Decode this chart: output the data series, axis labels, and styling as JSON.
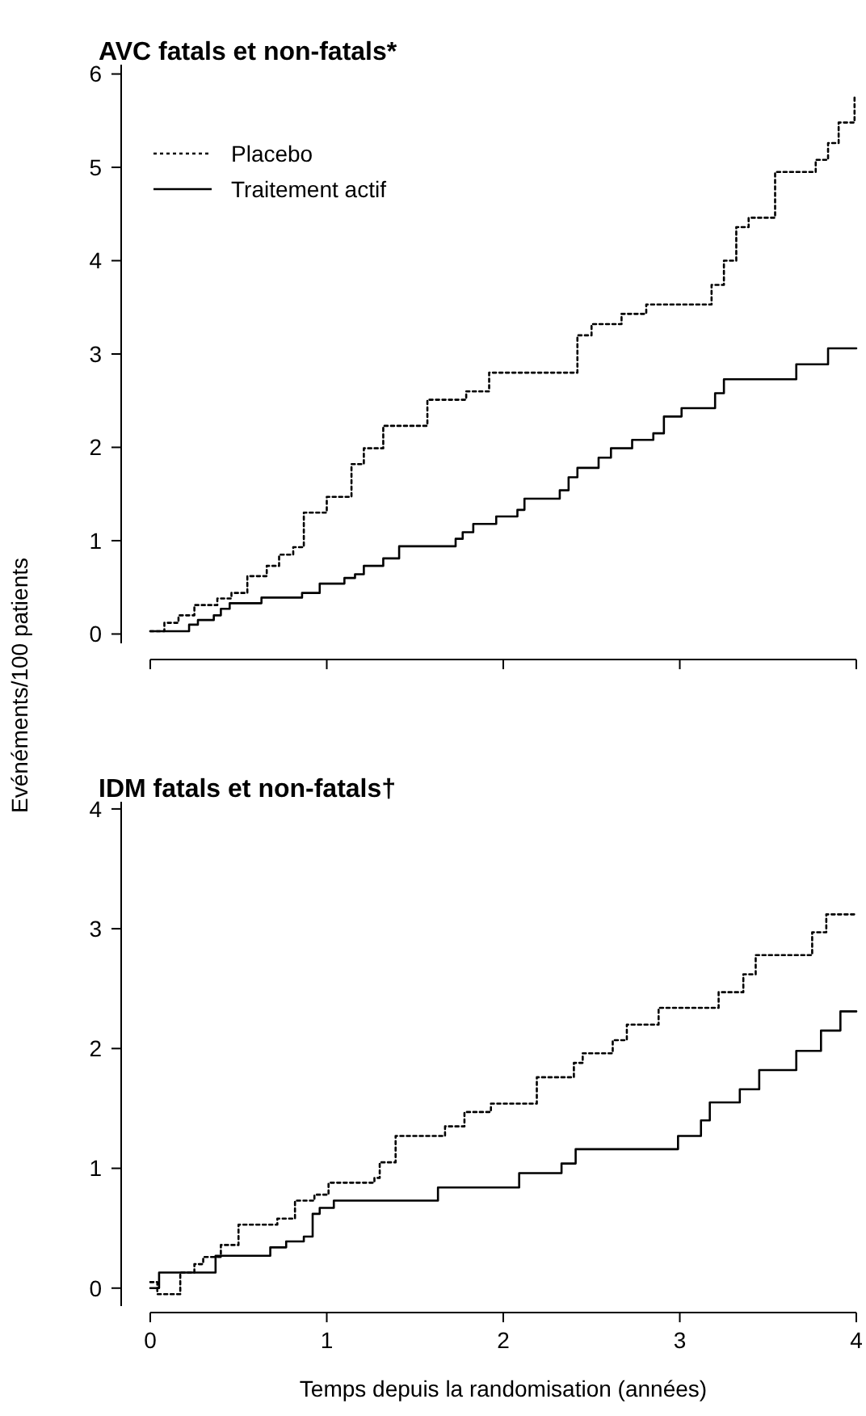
{
  "chart_data": [
    {
      "type": "step",
      "title": "AVC fatals et non-fatals*",
      "ylabel": "Evénéments/100 patients",
      "xlim": [
        0,
        4
      ],
      "xticks": [
        0,
        1,
        2,
        3,
        4
      ],
      "ylim": [
        -0.1,
        6.1
      ],
      "yticks": [
        0,
        1,
        2,
        3,
        4,
        5,
        6
      ],
      "tick_labels": "y",
      "legend": "top left",
      "grid": false,
      "series": [
        {
          "name": "Placebo",
          "color": "#000000",
          "line_style": "dotted",
          "x": [
            0,
            0.08,
            0.16,
            0.25,
            0.38,
            0.46,
            0.55,
            0.66,
            0.73,
            0.81,
            0.87,
            1.0,
            1.14,
            1.21,
            1.32,
            1.57,
            1.79,
            1.92,
            2.42,
            2.5,
            2.67,
            2.81,
            3.18,
            3.25,
            3.32,
            3.39,
            3.54,
            3.77,
            3.84,
            3.9,
            3.99
          ],
          "values": [
            0.03,
            0.12,
            0.2,
            0.31,
            0.38,
            0.44,
            0.62,
            0.73,
            0.85,
            0.93,
            1.3,
            1.47,
            1.82,
            1.99,
            2.23,
            2.51,
            2.6,
            2.8,
            3.2,
            3.32,
            3.43,
            3.53,
            3.74,
            4.0,
            4.36,
            4.46,
            4.95,
            5.08,
            5.26,
            5.48,
            5.78
          ]
        },
        {
          "name": "Traitement actif",
          "color": "#000000",
          "line_style": "solid",
          "x": [
            0,
            0.22,
            0.27,
            0.36,
            0.4,
            0.45,
            0.63,
            0.86,
            0.96,
            1.1,
            1.16,
            1.21,
            1.32,
            1.41,
            1.73,
            1.77,
            1.83,
            1.96,
            2.08,
            2.12,
            2.32,
            2.37,
            2.42,
            2.54,
            2.61,
            2.73,
            2.85,
            2.91,
            3.01,
            3.2,
            3.25,
            3.66,
            3.84,
            4.0
          ],
          "values": [
            0.03,
            0.1,
            0.15,
            0.2,
            0.27,
            0.33,
            0.39,
            0.44,
            0.54,
            0.6,
            0.64,
            0.73,
            0.81,
            0.94,
            1.02,
            1.09,
            1.18,
            1.26,
            1.33,
            1.45,
            1.54,
            1.68,
            1.78,
            1.89,
            1.99,
            2.08,
            2.15,
            2.33,
            2.42,
            2.58,
            2.73,
            2.89,
            3.06,
            3.06
          ]
        }
      ]
    },
    {
      "type": "step",
      "title": "IDM fatals et non-fatals†",
      "xlabel": "Temps depuis la randomisation (années)",
      "xlim": [
        0,
        4
      ],
      "xticks": [
        0,
        1,
        2,
        3,
        4
      ],
      "ylim": [
        -0.15,
        4.06
      ],
      "yticks": [
        0,
        1,
        2,
        3,
        4
      ],
      "legend": false,
      "grid": false,
      "series": [
        {
          "color": "#000000",
          "line_style": "dotted",
          "x": [
            0,
            0.04,
            0.17,
            0.25,
            0.3,
            0.4,
            0.5,
            0.72,
            0.82,
            0.93,
            1.01,
            1.27,
            1.3,
            1.39,
            1.67,
            1.78,
            1.93,
            2.19,
            2.4,
            2.45,
            2.62,
            2.7,
            2.88,
            3.22,
            3.36,
            3.43,
            3.75,
            3.83,
            4.0
          ],
          "values": [
            0.05,
            -0.05,
            0.13,
            0.2,
            0.26,
            0.36,
            0.53,
            0.58,
            0.73,
            0.78,
            0.88,
            0.92,
            1.05,
            1.27,
            1.35,
            1.47,
            1.54,
            1.76,
            1.88,
            1.96,
            2.07,
            2.2,
            2.34,
            2.47,
            2.62,
            2.78,
            2.97,
            3.12,
            3.12
          ]
        },
        {
          "color": "#000000",
          "line_style": "solid",
          "x": [
            0,
            0.05,
            0.37,
            0.68,
            0.77,
            0.87,
            0.92,
            0.96,
            1.04,
            1.63,
            2.09,
            2.33,
            2.41,
            2.99,
            3.12,
            3.17,
            3.34,
            3.45,
            3.66,
            3.8,
            3.91,
            4.0
          ],
          "values": [
            0,
            0.13,
            0.27,
            0.34,
            0.39,
            0.43,
            0.62,
            0.67,
            0.73,
            0.84,
            0.96,
            1.04,
            1.16,
            1.27,
            1.4,
            1.55,
            1.66,
            1.82,
            1.98,
            2.15,
            2.31,
            2.31
          ]
        }
      ]
    }
  ]
}
